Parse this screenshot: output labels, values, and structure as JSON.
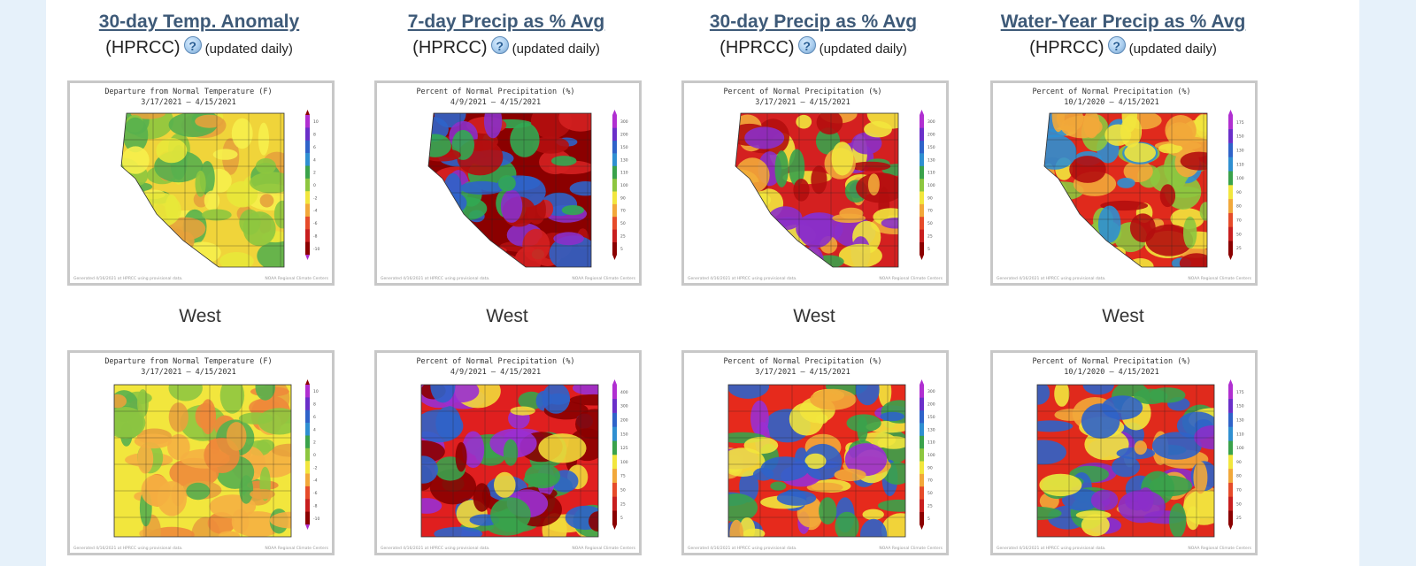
{
  "columns": [
    {
      "title": "30-day Temp. Anomaly",
      "source": "(HPRCC)",
      "help_glyph": "?",
      "updated": "(updated daily)",
      "maps": [
        {
          "heading": "Departure from Normal Temperature (F)",
          "dates": "3/17/2021 – 4/15/2021",
          "legend": [
            "10",
            "8",
            "6",
            "4",
            "2",
            "0",
            "-2",
            "-4",
            "-6",
            "-8",
            "-10"
          ],
          "footer_left": "Generated 4/16/2021 at HPRCC using provisional data.",
          "footer_right": "NOAA Regional Climate Centers",
          "colors": [
            "#f0d43a",
            "#8dc63f",
            "#e8e83a",
            "#e6a23c",
            "#58b04e",
            "#f6ef4d"
          ]
        },
        {
          "heading": "Departure from Normal Temperature (F)",
          "dates": "3/17/2021 – 4/15/2021",
          "legend": [
            "10",
            "8",
            "6",
            "4",
            "2",
            "0",
            "-2",
            "-4",
            "-6",
            "-8",
            "-10"
          ],
          "footer_left": "Generated 4/16/2021 at HPRCC using provisional data.",
          "footer_right": "NOAA Regional Climate Centers",
          "colors": [
            "#f2e63d",
            "#e8a23c",
            "#8fc640",
            "#f5b041",
            "#58b04e",
            "#ee8a3a"
          ]
        }
      ]
    },
    {
      "title": "7-day Precip as % Avg",
      "source": "(HPRCC)",
      "help_glyph": "?",
      "updated": "(updated daily)",
      "maps": [
        {
          "heading": "Percent of Normal Precipitation (%)",
          "dates": "4/9/2021 – 4/15/2021",
          "legend": [
            "300",
            "200",
            "150",
            "130",
            "110",
            "100",
            "90",
            "70",
            "50",
            "25",
            "5"
          ],
          "footer_left": "Generated 4/16/2021 at HPRCC using provisional data.",
          "footer_right": "NOAA Regional Climate Centers",
          "colors": [
            "#8b0000",
            "#b40e0e",
            "#d42020",
            "#2f63c9",
            "#8b2fc9",
            "#32a852"
          ]
        },
        {
          "heading": "Percent of Normal Precipitation (%)",
          "dates": "4/9/2021 – 4/15/2021",
          "legend": [
            "400",
            "300",
            "200",
            "150",
            "125",
            "100",
            "75",
            "50",
            "25",
            "5"
          ],
          "footer_left": "Generated 4/16/2021 at HPRCC using provisional data.",
          "footer_right": "NOAA Regional Climate Centers",
          "colors": [
            "#e01f1f",
            "#f2d93a",
            "#8b0000",
            "#3aa24b",
            "#2f63c9",
            "#9a2fd1"
          ]
        }
      ]
    },
    {
      "title": "30-day Precip as % Avg",
      "source": "(HPRCC)",
      "help_glyph": "?",
      "updated": "(updated daily)",
      "maps": [
        {
          "heading": "Percent of Normal Precipitation (%)",
          "dates": "3/17/2021 – 4/15/2021",
          "legend": [
            "300",
            "200",
            "150",
            "130",
            "110",
            "100",
            "90",
            "70",
            "50",
            "25",
            "5"
          ],
          "footer_left": "Generated 4/16/2021 at HPRCC using provisional data.",
          "footer_right": "NOAA Regional Climate Centers",
          "colors": [
            "#d42020",
            "#b40e0e",
            "#f2a83a",
            "#f2e63d",
            "#8b2fc9",
            "#3aa24b"
          ]
        },
        {
          "heading": "Percent of Normal Precipitation (%)",
          "dates": "3/17/2021 – 4/15/2021",
          "legend": [
            "300",
            "200",
            "150",
            "130",
            "110",
            "100",
            "90",
            "70",
            "50",
            "25",
            "5"
          ],
          "footer_left": "Generated 4/16/2021 at HPRCC using provisional data.",
          "footer_right": "NOAA Regional Climate Centers",
          "colors": [
            "#e62a1c",
            "#f2a83a",
            "#f2e63d",
            "#9a2fd1",
            "#3aa24b",
            "#2f63c9"
          ]
        }
      ]
    },
    {
      "title": "Water-Year Precip as % Avg",
      "source": "(HPRCC)",
      "help_glyph": "?",
      "updated": "(updated daily)",
      "maps": [
        {
          "heading": "Percent of Normal Precipitation (%)",
          "dates": "10/1/2020 – 4/15/2021",
          "legend": [
            "175",
            "150",
            "130",
            "110",
            "100",
            "90",
            "80",
            "70",
            "50",
            "25"
          ],
          "footer_left": "Generated 4/16/2021 at HPRCC using provisional data.",
          "footer_right": "NOAA Regional Climate Centers",
          "colors": [
            "#e02a1c",
            "#f2a83a",
            "#f2e63d",
            "#8dc63f",
            "#b40e0e",
            "#2f8fd1"
          ]
        },
        {
          "heading": "Percent of Normal Precipitation (%)",
          "dates": "10/1/2020 – 4/15/2021",
          "legend": [
            "175",
            "150",
            "130",
            "110",
            "100",
            "90",
            "80",
            "70",
            "50",
            "25"
          ],
          "footer_left": "Generated 4/16/2021 at HPRCC using provisional data.",
          "footer_right": "NOAA Regional Climate Centers",
          "colors": [
            "#e02a1c",
            "#f2a83a",
            "#f2e63d",
            "#3aa24b",
            "#8b2fc9",
            "#2f63c9"
          ]
        }
      ]
    }
  ],
  "region_label": "West",
  "theme": {
    "link_color": "#3e5a78",
    "page_bg": "#e6f1fa",
    "panel_bg": "#ffffff"
  }
}
